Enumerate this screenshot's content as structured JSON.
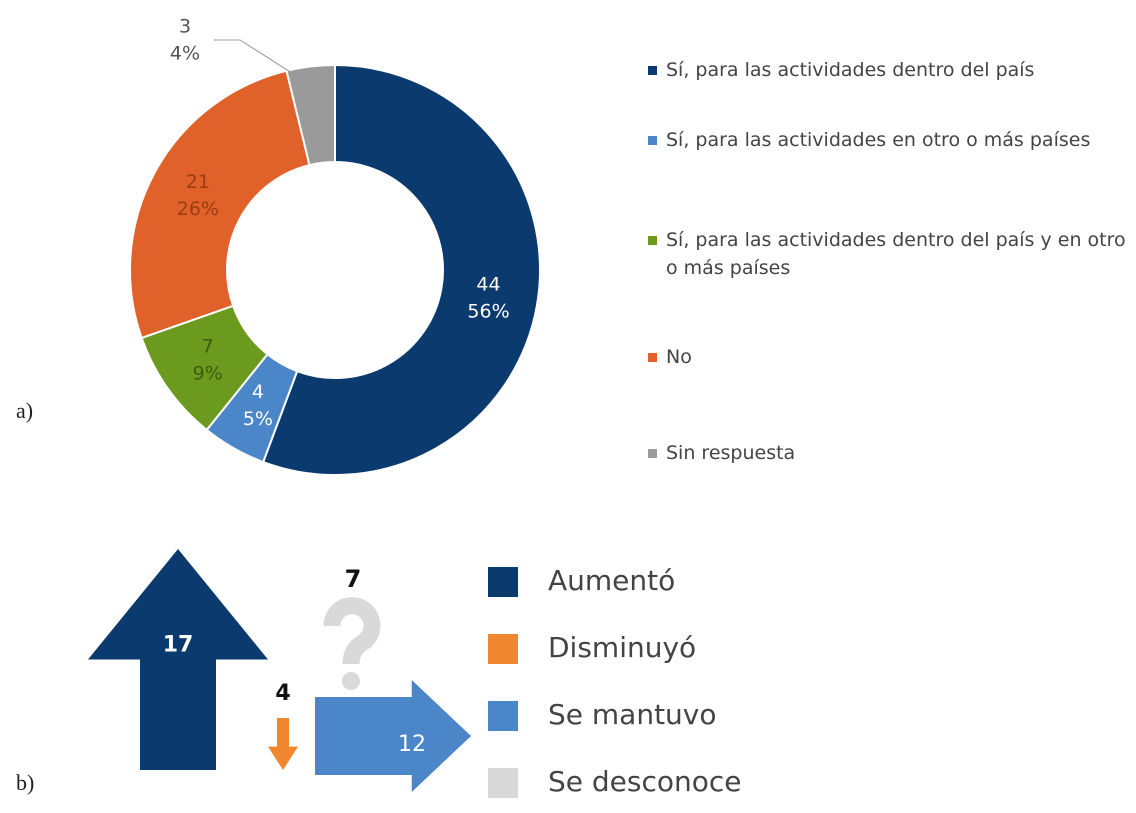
{
  "chart_data": [
    {
      "type": "donut",
      "panel": "a)",
      "categories": [
        "Sí, para las actividades dentro del país",
        "Sí, para las actividades en otro o más países",
        "Sí, para las actividades dentro del país y en otro o más países",
        "No",
        "Sin respuesta"
      ],
      "values": [
        44,
        4,
        7,
        21,
        3
      ],
      "percent_labels": [
        "56%",
        "5%",
        "9%",
        "26%",
        "4%"
      ],
      "colors": [
        "#0b3a6e",
        "#4a86c8",
        "#6b9a1f",
        "#e0612a",
        "#9a9a9a"
      ],
      "label_colors": [
        "#ffffff",
        "#ffffff",
        "#3e5c10",
        "#9c3c12",
        "#555555"
      ]
    },
    {
      "type": "arrows",
      "panel": "b)",
      "categories": [
        "Aumentó",
        "Disminuyó",
        "Se mantuvo",
        "Se desconoce"
      ],
      "values": [
        17,
        4,
        12,
        7
      ],
      "colors": [
        "#0b3a6e",
        "#f0862e",
        "#4a86c8",
        "#d9d9d9"
      ]
    }
  ]
}
